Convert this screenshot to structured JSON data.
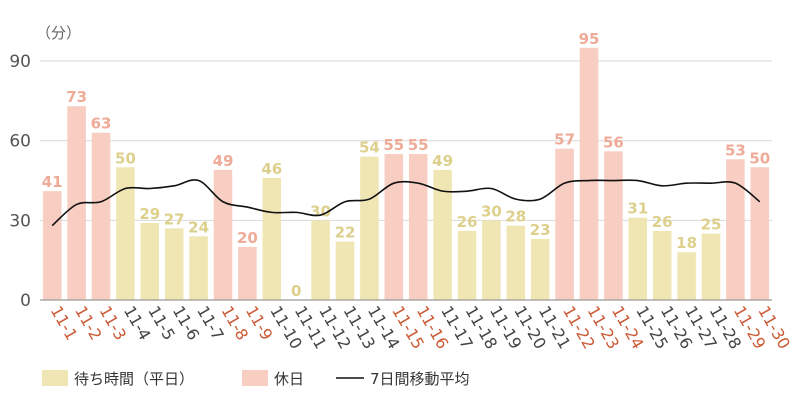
{
  "chart_data": {
    "type": "bar",
    "unit_label": "（分）",
    "ylim": [
      0,
      100
    ],
    "yticks": [
      0,
      30,
      60,
      90
    ],
    "grid": true,
    "legend_position": "bottom-left",
    "categories": [
      "11-1",
      "11-2",
      "11-3",
      "11-4",
      "11-5",
      "11-6",
      "11-7",
      "11-8",
      "11-9",
      "11-10",
      "11-11",
      "11-12",
      "11-13",
      "11-14",
      "11-15",
      "11-16",
      "11-17",
      "11-18",
      "11-19",
      "11-20",
      "11-21",
      "11-22",
      "11-23",
      "11-24",
      "11-25",
      "11-26",
      "11-27",
      "11-28",
      "11-29",
      "11-30"
    ],
    "values": [
      41,
      73,
      63,
      50,
      29,
      27,
      24,
      49,
      20,
      46,
      0,
      30,
      22,
      54,
      55,
      55,
      49,
      26,
      30,
      28,
      23,
      57,
      95,
      56,
      31,
      26,
      18,
      25,
      53,
      50
    ],
    "day_type": [
      "holiday",
      "holiday",
      "holiday",
      "weekday",
      "weekday",
      "weekday",
      "weekday",
      "holiday",
      "holiday",
      "weekday",
      "weekday",
      "weekday",
      "weekday",
      "weekday",
      "holiday",
      "holiday",
      "weekday",
      "weekday",
      "weekday",
      "weekday",
      "weekday",
      "holiday",
      "holiday",
      "holiday",
      "weekday",
      "weekday",
      "weekday",
      "weekday",
      "holiday",
      "holiday"
    ],
    "moving_average": [
      28,
      36,
      37,
      42,
      42,
      43,
      45,
      37,
      35,
      33,
      33,
      32,
      37,
      38,
      44,
      44,
      41,
      41,
      42,
      38,
      38,
      44,
      45,
      45,
      45,
      43,
      44,
      44,
      44,
      37
    ],
    "series": [
      {
        "key": "weekday",
        "name": "待ち時間（平日）",
        "color": "#f0e6b4"
      },
      {
        "key": "holiday",
        "name": "休日",
        "color": "#f7cec1"
      },
      {
        "key": "moving_average",
        "name": "7日間移動平均",
        "color": "#111111"
      }
    ],
    "label_colors": {
      "weekday": "#ddd08c",
      "holiday": "#efab97"
    },
    "tick_colors": {
      "weekday": "#444444",
      "holiday": "#cc5a35"
    }
  }
}
